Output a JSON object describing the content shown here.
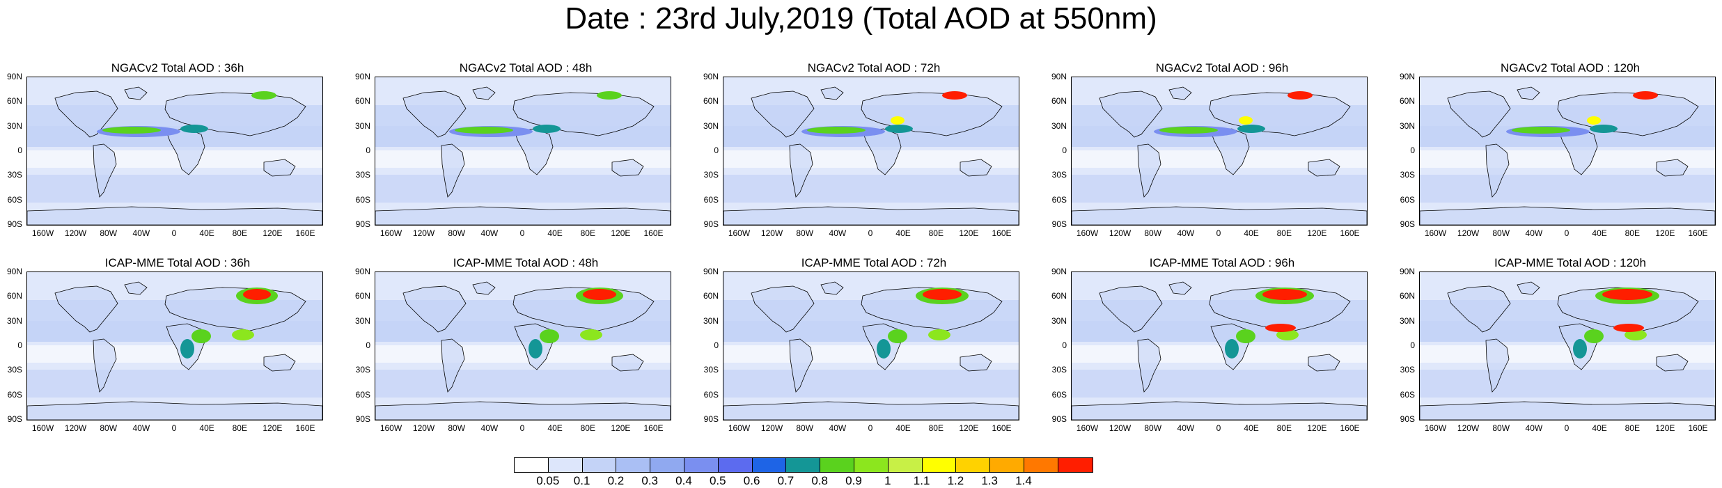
{
  "title": "Date : 23rd July,2019 (Total AOD at 550nm)",
  "panels": [
    {
      "title": "NGACv2 Total AOD : 36h",
      "model": "NGACv2",
      "lead": "36h"
    },
    {
      "title": "NGACv2 Total AOD : 48h",
      "model": "NGACv2",
      "lead": "48h"
    },
    {
      "title": "NGACv2 Total AOD : 72h",
      "model": "NGACv2",
      "lead": "72h"
    },
    {
      "title": "NGACv2 Total AOD : 96h",
      "model": "NGACv2",
      "lead": "96h"
    },
    {
      "title": "NGACv2 Total AOD : 120h",
      "model": "NGACv2",
      "lead": "120h"
    },
    {
      "title": "ICAP-MME Total AOD : 36h",
      "model": "ICAP-MME",
      "lead": "36h"
    },
    {
      "title": "ICAP-MME Total AOD : 48h",
      "model": "ICAP-MME",
      "lead": "48h"
    },
    {
      "title": "ICAP-MME Total AOD : 72h",
      "model": "ICAP-MME",
      "lead": "72h"
    },
    {
      "title": "ICAP-MME Total AOD : 96h",
      "model": "ICAP-MME",
      "lead": "96h"
    },
    {
      "title": "ICAP-MME Total AOD : 120h",
      "model": "ICAP-MME",
      "lead": "120h"
    }
  ],
  "axes": {
    "lat_labels": [
      "90N",
      "60N",
      "30N",
      "0",
      "30S",
      "60S",
      "90S"
    ],
    "lon_labels": [
      "160W",
      "120W",
      "80W",
      "40W",
      "0",
      "40E",
      "80E",
      "120E",
      "160E"
    ]
  },
  "colorbar": {
    "labels": [
      "0.05",
      "0.1",
      "0.2",
      "0.3",
      "0.4",
      "0.5",
      "0.6",
      "0.7",
      "0.8",
      "0.9",
      "1",
      "1.1",
      "1.2",
      "1.3",
      "1.4"
    ],
    "colors": [
      "#ffffff",
      "#dde6fb",
      "#c4d3f7",
      "#aabff4",
      "#90a9f0",
      "#7a8ff0",
      "#5c6bef",
      "#1e64e6",
      "#149696",
      "#5ad21e",
      "#8ce61e",
      "#c8f046",
      "#ffff00",
      "#ffd200",
      "#ffaa00",
      "#ff7800",
      "#ff1e00"
    ]
  }
}
